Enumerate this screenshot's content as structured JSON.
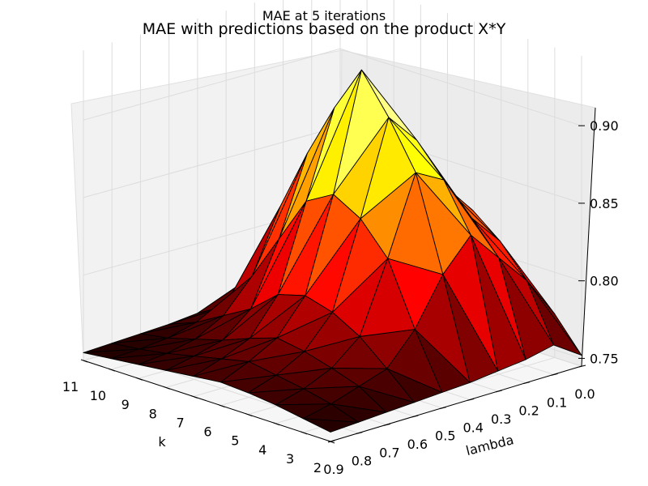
{
  "suptitle": "MAE at 5 iterations",
  "chart_data": {
    "type": "surface",
    "title": "MAE with predictions based on the product X*Y",
    "xlabel": "k",
    "ylabel": "lambda",
    "zlabel": "",
    "x_ticks": [
      "2",
      "3",
      "4",
      "5",
      "6",
      "7",
      "8",
      "9",
      "10",
      "11"
    ],
    "y_ticks": [
      "0.0",
      "0.1",
      "0.2",
      "0.3",
      "0.4",
      "0.5",
      "0.6",
      "0.7",
      "0.8",
      "0.9"
    ],
    "z_ticks": [
      "0.75",
      "0.80",
      "0.85",
      "0.90"
    ],
    "xlim": [
      2,
      11
    ],
    "ylim": [
      0.0,
      0.9
    ],
    "zlim": [
      0.745,
      0.945
    ],
    "colormap": "hot",
    "grid": true,
    "k": [
      2,
      3,
      4,
      5,
      6,
      7,
      8,
      9,
      10,
      11
    ],
    "lambda": [
      0.0,
      0.1,
      0.2,
      0.3,
      0.4,
      0.5,
      0.6,
      0.7,
      0.8,
      0.9
    ],
    "mae": [
      [
        0.752,
        0.773,
        0.78,
        0.785,
        0.782,
        0.777,
        0.771,
        0.765,
        0.76,
        0.756
      ],
      [
        0.764,
        0.8,
        0.82,
        0.834,
        0.843,
        0.838,
        0.82,
        0.79,
        0.77,
        0.76
      ],
      [
        0.76,
        0.82,
        0.84,
        0.855,
        0.862,
        0.855,
        0.84,
        0.81,
        0.77,
        0.758
      ],
      [
        0.758,
        0.84,
        0.87,
        0.89,
        0.9,
        0.88,
        0.86,
        0.82,
        0.78,
        0.76
      ],
      [
        0.756,
        0.82,
        0.88,
        0.91,
        0.935,
        0.905,
        0.87,
        0.83,
        0.78,
        0.758
      ],
      [
        0.755,
        0.79,
        0.83,
        0.85,
        0.86,
        0.85,
        0.82,
        0.79,
        0.765,
        0.755
      ],
      [
        0.754,
        0.77,
        0.785,
        0.795,
        0.8,
        0.795,
        0.78,
        0.77,
        0.76,
        0.753
      ],
      [
        0.753,
        0.764,
        0.77,
        0.775,
        0.778,
        0.772,
        0.765,
        0.76,
        0.755,
        0.752
      ],
      [
        0.752,
        0.758,
        0.762,
        0.765,
        0.768,
        0.764,
        0.76,
        0.756,
        0.753,
        0.751
      ],
      [
        0.751,
        0.754,
        0.757,
        0.759,
        0.76,
        0.758,
        0.756,
        0.754,
        0.752,
        0.75
      ]
    ]
  }
}
